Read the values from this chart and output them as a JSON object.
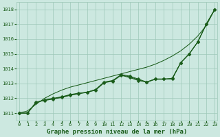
{
  "title": "Graphe pression niveau de la mer (hPa)",
  "x": [
    0,
    1,
    2,
    3,
    4,
    5,
    6,
    7,
    8,
    9,
    10,
    11,
    12,
    13,
    14,
    15,
    16,
    17,
    18,
    19,
    20,
    21,
    22,
    23
  ],
  "smooth_line": [
    1011.0,
    1011.15,
    1011.6,
    1012.0,
    1012.3,
    1012.55,
    1012.75,
    1012.9,
    1013.05,
    1013.2,
    1013.35,
    1013.5,
    1013.65,
    1013.8,
    1013.95,
    1014.1,
    1014.3,
    1014.55,
    1014.85,
    1015.2,
    1015.65,
    1016.2,
    1016.9,
    1018.0
  ],
  "line_marked1": [
    1011.0,
    1011.0,
    1011.7,
    1011.9,
    1012.0,
    1012.1,
    1012.25,
    1012.35,
    1012.4,
    1012.55,
    1013.05,
    1013.15,
    1013.55,
    1013.4,
    1013.2,
    1013.1,
    1013.3,
    1013.3,
    1013.3,
    1014.4,
    1015.0,
    1015.8,
    1017.0,
    1018.0
  ],
  "line_marked2": [
    1011.0,
    1011.0,
    1011.75,
    1011.85,
    1011.95,
    1012.05,
    1012.2,
    1012.3,
    1012.4,
    1012.6,
    1013.1,
    1013.2,
    1013.6,
    1013.5,
    1013.3,
    1013.1,
    1013.3,
    1013.3,
    1013.35,
    1014.4,
    1015.0,
    1015.8,
    1017.0,
    1018.0
  ],
  "line_plain1": [
    1011.0,
    1011.0,
    1011.72,
    1011.87,
    1011.97,
    1012.08,
    1012.22,
    1012.32,
    1012.42,
    1012.58,
    1013.07,
    1013.17,
    1013.57,
    1013.45,
    1013.25,
    1013.08,
    1013.28,
    1013.28,
    1013.32,
    1014.4,
    1015.0,
    1015.8,
    1017.0,
    1018.0
  ],
  "ylim": [
    1010.5,
    1018.5
  ],
  "xlim": [
    -0.3,
    23.3
  ],
  "yticks": [
    1011,
    1012,
    1013,
    1014,
    1015,
    1016,
    1017,
    1018
  ],
  "xticks": [
    0,
    1,
    2,
    3,
    4,
    5,
    6,
    7,
    8,
    9,
    10,
    11,
    12,
    13,
    14,
    15,
    16,
    17,
    18,
    19,
    20,
    21,
    22,
    23
  ],
  "line_color": "#1a5c1a",
  "bg_color": "#cce8e0",
  "grid_color": "#9ec8b8",
  "text_color": "#1a5c1a",
  "title_fontsize": 6.5,
  "tick_fontsize": 5.0,
  "marker_size": 2.5,
  "line_width": 0.75
}
